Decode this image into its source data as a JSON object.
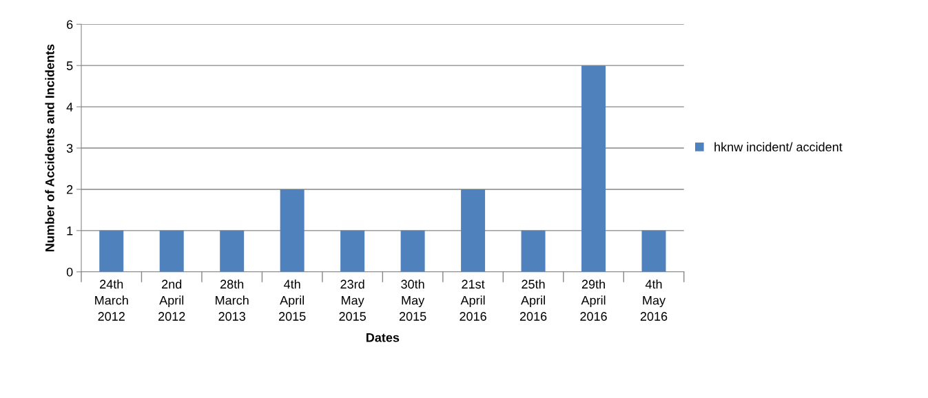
{
  "chart_data": {
    "type": "bar",
    "xlabel": "Dates",
    "ylabel": "Number of Accidents and Incidents",
    "categories": [
      "24th March 2012",
      "2nd April 2012",
      "28th March 2013",
      "4th April 2015",
      "23rd May 2015",
      "30th May 2015",
      "21st April 2016",
      "25th April 2016",
      "29th April 2016",
      "4th May 2016"
    ],
    "series": [
      {
        "name": "hknw incident/ accident",
        "color": "#4f81bd",
        "values": [
          1,
          1,
          1,
          2,
          1,
          1,
          2,
          1,
          5,
          1
        ]
      }
    ],
    "ylim": [
      0,
      6
    ],
    "yticks": [
      0,
      1,
      2,
      3,
      4,
      5,
      6
    ],
    "grid": "y",
    "legend": "right"
  }
}
